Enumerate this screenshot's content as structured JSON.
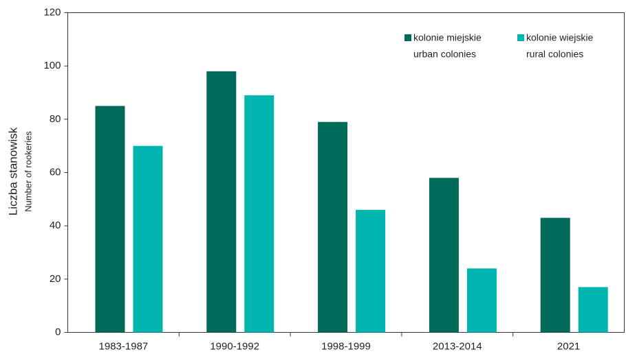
{
  "chart_data": {
    "type": "bar",
    "ylabel": [
      "Liczba stanowisk",
      "Number of rookeries"
    ],
    "categories": [
      "1983-1987",
      "1990-1992",
      "1998-1999",
      "2013-2014",
      "2021"
    ],
    "series": [
      {
        "name": [
          "kolonie miejskie",
          "urban colonies"
        ],
        "color": "#006b5a",
        "values": [
          85,
          98,
          79,
          58,
          43
        ]
      },
      {
        "name": [
          "kolonie wiejskie",
          "rural colonies"
        ],
        "color": "#00b5b0",
        "values": [
          70,
          89,
          46,
          24,
          17
        ]
      }
    ],
    "ylim": [
      0,
      120
    ],
    "yticks": [
      0,
      20,
      40,
      60,
      80,
      100,
      120
    ]
  }
}
